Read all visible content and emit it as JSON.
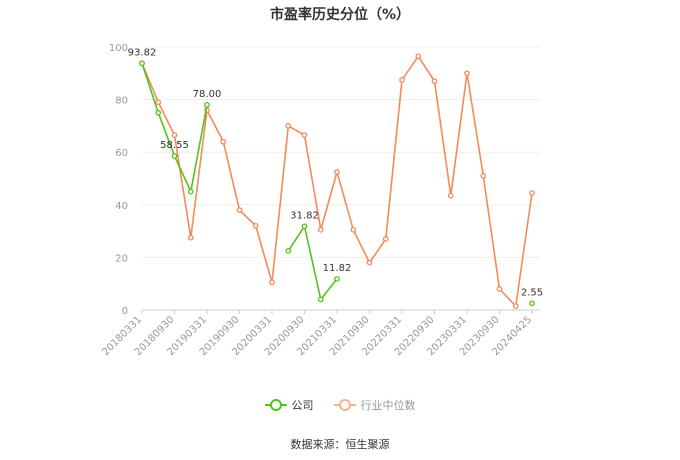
{
  "chart_data": {
    "type": "line",
    "title": "市盈率历史分位（%）",
    "ylim": [
      0,
      100
    ],
    "yticks": [
      0,
      20,
      40,
      60,
      80,
      100
    ],
    "grid": true,
    "legend_position": "bottom",
    "xtick_labels": [
      "20180331",
      "20180930",
      "20190331",
      "20190930",
      "20200331",
      "20200930",
      "20210331",
      "20210930",
      "20220331",
      "20220930",
      "20230331",
      "20230930",
      "20240425"
    ],
    "series": [
      {
        "name": "公司",
        "color": "#52c41a",
        "values": [
          93.82,
          75.0,
          58.55,
          45.0,
          78.0,
          null,
          null,
          null,
          null,
          22.5,
          31.82,
          4.0,
          11.82,
          null,
          null,
          null,
          null,
          null,
          null,
          null,
          null,
          null,
          null,
          null,
          2.55
        ],
        "labels": {
          "0": "93.82",
          "2": "58.55",
          "4": "78.00",
          "10": "31.82",
          "12": "11.82",
          "24": "2.55"
        }
      },
      {
        "name": "行业中位数",
        "color": "#f5895a",
        "values": [
          93.82,
          79.0,
          66.5,
          27.5,
          76.0,
          64.0,
          38.0,
          32.0,
          10.5,
          70.0,
          66.5,
          30.5,
          52.5,
          30.5,
          18.0,
          27.0,
          87.5,
          96.5,
          87.0,
          43.5,
          90.0,
          51.0,
          8.0,
          1.5,
          44.5
        ]
      }
    ]
  },
  "source": "数据来源：恒生聚源"
}
